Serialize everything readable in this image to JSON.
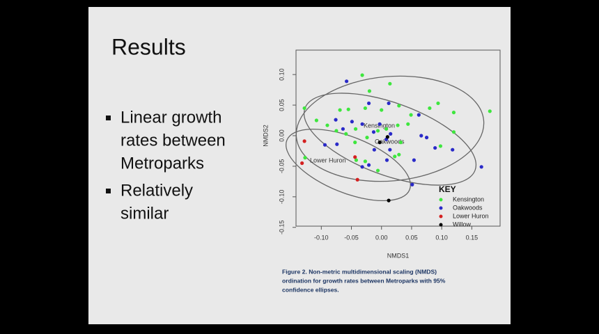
{
  "slide": {
    "title": "Results",
    "bullets": [
      [
        "Linear growth",
        "rates between",
        "Metroparks"
      ],
      [
        "Relatively",
        "similar"
      ]
    ],
    "caption": [
      "Figure 2. Non-metric multidimensional scaling (NMDS)",
      "ordination for growth rates between Metroparks with 95%",
      "confidence ellipses."
    ]
  },
  "chart_data": {
    "type": "scatter",
    "x_label": "NMDS1",
    "y_label": "NMDS2",
    "legend_title": "KEY",
    "legend": "bottom-right",
    "annotations": [
      "Kensington",
      "Oakwoods",
      "Lower Huron"
    ],
    "xlim": [
      -0.142,
      0.197
    ],
    "ylim": [
      -0.148,
      0.14
    ],
    "xticks": [
      {
        "value": -0.1,
        "label": "-0.10"
      },
      {
        "value": -0.05,
        "label": "-0.05"
      },
      {
        "value": 0,
        "label": "0.00"
      },
      {
        "value": 0.05,
        "label": "0.05"
      },
      {
        "value": 0.1,
        "label": "0.10"
      },
      {
        "value": 0.15,
        "label": "0.15"
      }
    ],
    "yticks": [
      {
        "value": 0.1,
        "label": "0.10"
      },
      {
        "value": 0.05,
        "label": "0.05"
      },
      {
        "value": 0,
        "label": "0.00"
      },
      {
        "value": -0.05,
        "label": "-0.05"
      },
      {
        "value": -0.1,
        "label": "-0.10"
      },
      {
        "value": -0.15,
        "label": "-0.15"
      }
    ],
    "series": [
      {
        "name": "Kensington",
        "color": "#3ee63e",
        "x": [
          -0.032,
          0.014,
          -0.02,
          -0.128,
          -0.069,
          -0.055,
          -0.027,
          0.0,
          0.029,
          0.08,
          0.094,
          0.12,
          0.18,
          -0.108,
          -0.09,
          -0.075,
          -0.059,
          -0.043,
          -0.006,
          0.008,
          0.027,
          0.044,
          0.12,
          0.098,
          -0.044,
          -0.024,
          0.022,
          0.029,
          0.032,
          -0.006,
          -0.127,
          -0.042,
          -0.027,
          0.049
        ],
        "values": [
          0.099,
          0.085,
          0.073,
          0.045,
          0.042,
          0.043,
          0.045,
          0.042,
          0.049,
          0.045,
          0.053,
          0.038,
          0.04,
          0.025,
          0.017,
          0.008,
          0.003,
          0.011,
          0.008,
          0.011,
          0.017,
          0.019,
          0.006,
          -0.017,
          -0.011,
          -0.003,
          -0.034,
          -0.031,
          -0.011,
          -0.057,
          -0.036,
          -0.04,
          -0.042,
          0.034
        ]
      },
      {
        "name": "Oakwoods",
        "color": "#2a2ac8",
        "x": [
          -0.058,
          -0.021,
          0.012,
          0.062,
          -0.076,
          -0.064,
          -0.049,
          -0.032,
          -0.013,
          0.008,
          0.015,
          0.066,
          0.075,
          -0.094,
          -0.074,
          -0.012,
          0.014,
          -0.032,
          -0.021,
          0.009,
          0.054,
          0.089,
          0.118,
          0.166,
          0.051,
          -0.003
        ],
        "values": [
          0.089,
          0.053,
          0.053,
          0.034,
          0.026,
          0.011,
          0.023,
          0.019,
          0.006,
          -0.006,
          0.003,
          0.0,
          -0.003,
          -0.015,
          -0.014,
          -0.023,
          -0.023,
          -0.051,
          -0.048,
          -0.04,
          -0.04,
          -0.02,
          -0.023,
          -0.051,
          -0.08,
          0.019
        ]
      },
      {
        "name": "Lower Huron",
        "color": "#d42020",
        "x": [
          -0.128,
          -0.132,
          -0.044,
          -0.04
        ],
        "values": [
          -0.009,
          -0.045,
          -0.035,
          -0.072
        ]
      },
      {
        "name": "Willow",
        "color": "#000000",
        "x": [
          0.01,
          -0.003,
          0.012
        ],
        "values": [
          -0.002,
          -0.011,
          -0.106
        ]
      }
    ]
  }
}
